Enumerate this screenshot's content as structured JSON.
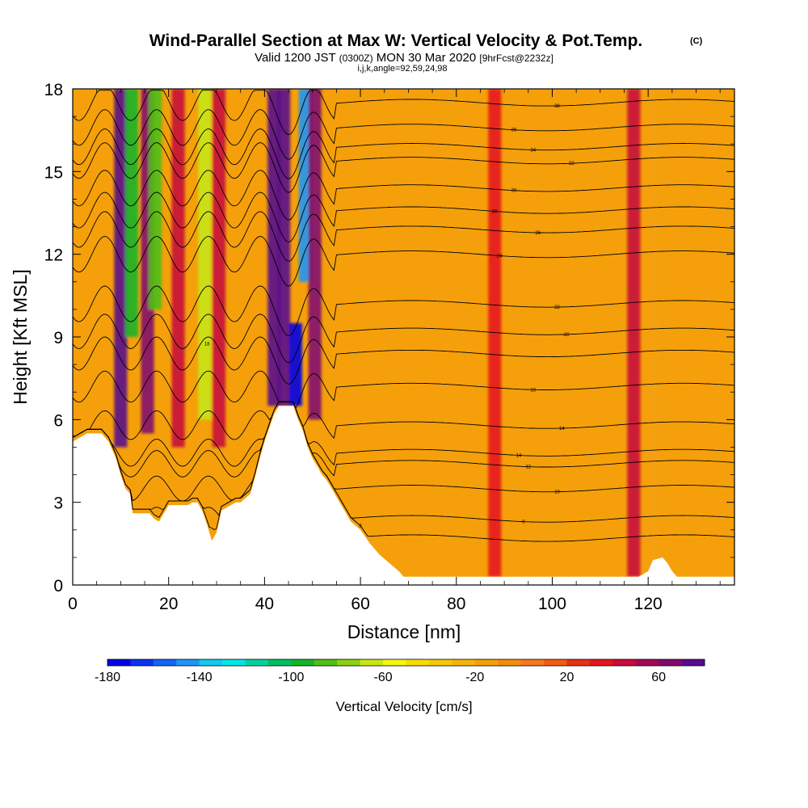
{
  "chart_data": {
    "type": "heatmap",
    "title": "Wind-Parallel Section at Max W: Vertical Velocity & Pot.Temp.",
    "title_mark": "(C)",
    "subtitle_valid": "Valid 1200 JST",
    "subtitle_zulu": "(0300Z)",
    "subtitle_date": "MON 30 Mar 2020",
    "subtitle_fcst": "[9hrFcst@2232z]",
    "subtitle_indices": "i,j,k,angle=92,59,24,98",
    "xlabel": "Distance [nm]",
    "ylabel": "Height [Kft MSL]",
    "xlim": [
      0,
      138
    ],
    "ylim": [
      0,
      18
    ],
    "x_ticks": [
      0,
      20,
      40,
      60,
      80,
      100,
      120
    ],
    "y_ticks": [
      0,
      3,
      6,
      9,
      12,
      15,
      18
    ],
    "colorbar": {
      "label": "Vertical Velocity [cm/s]",
      "range": [
        -180,
        80
      ],
      "step": 10,
      "tick_values": [
        -180,
        -140,
        -100,
        -60,
        -20,
        20,
        60
      ],
      "tick_labels": [
        "-180",
        "-140",
        "-100",
        "-60",
        "-20",
        "20",
        "60"
      ],
      "colors": [
        "#0000e6",
        "#0a32f0",
        "#1464f5",
        "#1e96f5",
        "#14c8f0",
        "#00e6e6",
        "#00d2a0",
        "#00be64",
        "#14b428",
        "#50be14",
        "#8cd214",
        "#c8e614",
        "#f5f514",
        "#f5dc0a",
        "#f5c80a",
        "#f5b40a",
        "#f5a00a",
        "#f58c0a",
        "#f5781e",
        "#f55a14",
        "#e63214",
        "#e6141e",
        "#c80a3c",
        "#a00a55",
        "#820a6e",
        "#5a0a8c"
      ]
    },
    "terrain_kft": [
      [
        0,
        5.2
      ],
      [
        3,
        5.5
      ],
      [
        6,
        5.5
      ],
      [
        7.5,
        5.2
      ],
      [
        9,
        4.6
      ],
      [
        10,
        4.0
      ],
      [
        11,
        3.5
      ],
      [
        12,
        3.3
      ],
      [
        12.5,
        2.6
      ],
      [
        13,
        2.6
      ],
      [
        14,
        2.6
      ],
      [
        15,
        2.6
      ],
      [
        16,
        2.6
      ],
      [
        17,
        2.4
      ],
      [
        18,
        2.3
      ],
      [
        19,
        2.6
      ],
      [
        20,
        2.9
      ],
      [
        22,
        2.9
      ],
      [
        23,
        2.9
      ],
      [
        24,
        2.9
      ],
      [
        25,
        3.0
      ],
      [
        26,
        3.0
      ],
      [
        27,
        2.7
      ],
      [
        28,
        2.2
      ],
      [
        29,
        1.6
      ],
      [
        30,
        1.9
      ],
      [
        31,
        2.7
      ],
      [
        33,
        2.9
      ],
      [
        34,
        3.0
      ],
      [
        35,
        3.0
      ],
      [
        37,
        3.3
      ],
      [
        38,
        3.9
      ],
      [
        39,
        4.6
      ],
      [
        40,
        5.2
      ],
      [
        41,
        5.7
      ],
      [
        42,
        6.2
      ],
      [
        43,
        6.5
      ],
      [
        44,
        6.5
      ],
      [
        45,
        6.5
      ],
      [
        46,
        6.5
      ],
      [
        47,
        6.0
      ],
      [
        48,
        5.6
      ],
      [
        49,
        5.0
      ],
      [
        50,
        4.6
      ],
      [
        51,
        4.3
      ],
      [
        52,
        4.0
      ],
      [
        53,
        3.8
      ],
      [
        54,
        3.5
      ],
      [
        55,
        3.2
      ],
      [
        56,
        2.9
      ],
      [
        57,
        2.6
      ],
      [
        58,
        2.3
      ],
      [
        60,
        2.0
      ],
      [
        62,
        1.5
      ],
      [
        64,
        1.1
      ],
      [
        66,
        0.8
      ],
      [
        68,
        0.5
      ],
      [
        69,
        0.3
      ],
      [
        118,
        0.3
      ],
      [
        120,
        0.5
      ],
      [
        121,
        0.9
      ],
      [
        123,
        1.0
      ],
      [
        124,
        0.8
      ],
      [
        125,
        0.5
      ],
      [
        126,
        0.3
      ],
      [
        138,
        0.3
      ]
    ],
    "w_features": [
      {
        "x": 10,
        "y0": 5.0,
        "y1": 18,
        "w": 70
      },
      {
        "x": 12.3,
        "y0": 9.0,
        "y1": 18,
        "w": -100
      },
      {
        "x": 15.6,
        "y0": 5.5,
        "y1": 18,
        "w": 60
      },
      {
        "x": 17.2,
        "y0": 10.0,
        "y1": 18,
        "w": -90
      },
      {
        "x": 22,
        "y0": 5.0,
        "y1": 18,
        "w": 45
      },
      {
        "x": 27.5,
        "y0": 6.0,
        "y1": 18,
        "w": -70
      },
      {
        "x": 30.5,
        "y0": 5.0,
        "y1": 18,
        "w": 40
      },
      {
        "x": 42,
        "y0": 6.5,
        "y1": 18,
        "w": 80
      },
      {
        "x": 44,
        "y0": 6.5,
        "y1": 18,
        "w": 80
      },
      {
        "x": 46.5,
        "y0": 6.5,
        "y1": 9.5,
        "w": -180
      },
      {
        "x": 48.5,
        "y0": 11.0,
        "y1": 18,
        "w": -150
      },
      {
        "x": 50.5,
        "y0": 6.0,
        "y1": 18,
        "w": 60
      },
      {
        "x": 88,
        "y0": 0.3,
        "y1": 18,
        "w": 35
      },
      {
        "x": 117,
        "y0": 0.3,
        "y1": 18,
        "w": 45
      },
      {
        "x": 121,
        "y0": 0.3,
        "y1": 18,
        "w": -15
      }
    ],
    "theta_contours": [
      {
        "base_kft": 1.7,
        "label": "8",
        "label_x": 60
      },
      {
        "base_kft": 2.4,
        "label": "8",
        "label_x": 94
      },
      {
        "base_kft": 3.5,
        "label": "10",
        "label_x": 101
      },
      {
        "base_kft": 4.4,
        "label": "12",
        "label_x": 95
      },
      {
        "base_kft": 4.8,
        "label": "14",
        "label_x": 93
      },
      {
        "base_kft": 5.8,
        "label": "14",
        "label_x": 102
      },
      {
        "base_kft": 7.2,
        "label": "16",
        "label_x": 96
      },
      {
        "base_kft": 8.4,
        "label": "18",
        "label_x": 28
      },
      {
        "base_kft": 9.2,
        "label": "20",
        "label_x": 103
      },
      {
        "base_kft": 10.2,
        "label": "22",
        "label_x": 101
      },
      {
        "base_kft": 12.0,
        "label": "24",
        "label_x": 89
      },
      {
        "base_kft": 12.9,
        "label": "26",
        "label_x": 97
      },
      {
        "base_kft": 13.6,
        "label": "28",
        "label_x": 88
      },
      {
        "base_kft": 14.4,
        "label": "30",
        "label_x": 92
      },
      {
        "base_kft": 15.4,
        "label": "32",
        "label_x": 104
      },
      {
        "base_kft": 15.9,
        "label": "34",
        "label_x": 96
      },
      {
        "base_kft": 16.6,
        "label": "36",
        "label_x": 92
      },
      {
        "base_kft": 17.5,
        "label": "38",
        "label_x": 101
      }
    ]
  }
}
